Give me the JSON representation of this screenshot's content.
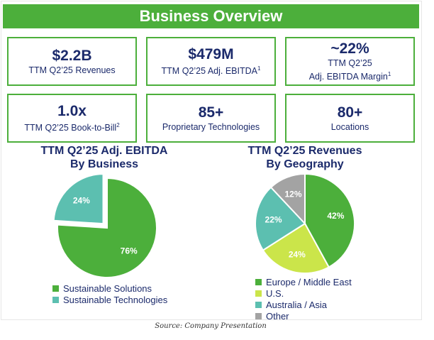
{
  "header": {
    "title": "Business Overview"
  },
  "kpis": [
    {
      "value": "$2.2B",
      "label": "TTM Q2’25 Revenues",
      "label2": "",
      "sup": ""
    },
    {
      "value": "$479M",
      "label": "TTM Q2’25 Adj. EBITDA",
      "label2": "",
      "sup": "1"
    },
    {
      "value": "~22%",
      "label": "TTM Q2’25",
      "label2": "Adj. EBITDA Margin",
      "sup": "1"
    },
    {
      "value": "1.0x",
      "label": "TTM Q2’25 Book-to-Bill",
      "label2": "",
      "sup": "2"
    },
    {
      "value": "85+",
      "label": "Proprietary Technologies",
      "label2": "",
      "sup": ""
    },
    {
      "value": "80+",
      "label": "Locations",
      "label2": "",
      "sup": ""
    }
  ],
  "chart_data": [
    {
      "type": "pie",
      "title": "TTM Q2’25 Adj. EBITDA",
      "subtitle": "By Business",
      "series": [
        {
          "name": "Sustainable Solutions",
          "value": 76,
          "label": "76%",
          "color": "#4caf3b"
        },
        {
          "name": "Sustainable Technologies",
          "value": 24,
          "label": "24%",
          "color": "#5cbfb0"
        }
      ],
      "legend_position": "bottom"
    },
    {
      "type": "pie",
      "title": "TTM Q2’25 Revenues",
      "subtitle": "By Geography",
      "series": [
        {
          "name": "Europe / Middle East",
          "value": 42,
          "label": "42%",
          "color": "#4caf3b"
        },
        {
          "name": "U.S.",
          "value": 24,
          "label": "24%",
          "color": "#cbe54a"
        },
        {
          "name": "Australia / Asia",
          "value": 22,
          "label": "22%",
          "color": "#5cbfb0"
        },
        {
          "name": "Other",
          "value": 12,
          "label": "12%",
          "color": "#a3a3a3"
        }
      ],
      "legend_position": "bottom"
    }
  ],
  "footer": {
    "source": "Source: Company Presentation"
  }
}
